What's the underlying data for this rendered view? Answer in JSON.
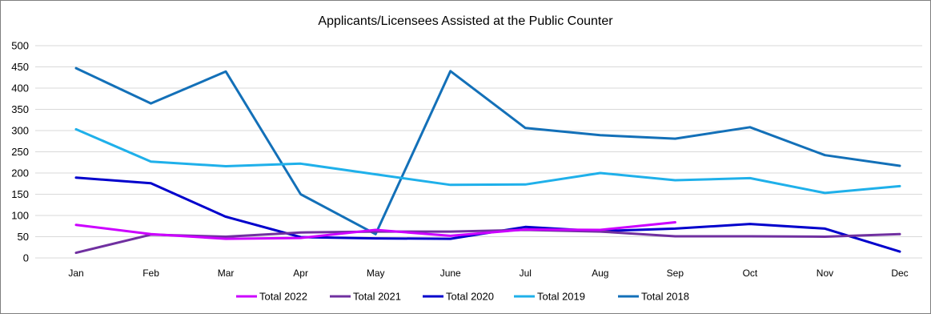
{
  "chart_data": {
    "type": "line",
    "title": "Applicants/Licensees Assisted at the Public Counter",
    "categories": [
      "Jan",
      "Feb",
      "Mar",
      "Apr",
      "May",
      "June",
      "Jul",
      "Aug",
      "Sep",
      "Oct",
      "Nov",
      "Dec"
    ],
    "ylim": [
      0,
      500
    ],
    "yticks": [
      0,
      50,
      100,
      150,
      200,
      250,
      300,
      350,
      400,
      450,
      500
    ],
    "grid": true,
    "legend_position": "bottom",
    "series": [
      {
        "name": "Total 2022",
        "color": "#cc00ff",
        "values": [
          78,
          56,
          45,
          47,
          66,
          52,
          67,
          66,
          84,
          null,
          null,
          null
        ]
      },
      {
        "name": "Total 2021",
        "color": "#7030a0",
        "values": [
          12,
          55,
          50,
          60,
          62,
          62,
          66,
          62,
          51,
          51,
          50,
          56
        ]
      },
      {
        "name": "Total 2020",
        "color": "#0000cc",
        "values": [
          189,
          176,
          97,
          49,
          46,
          45,
          73,
          63,
          69,
          80,
          69,
          15
        ]
      },
      {
        "name": "Total 2019",
        "color": "#1fb0ea",
        "values": [
          303,
          227,
          216,
          222,
          197,
          172,
          173,
          200,
          183,
          188,
          153,
          169
        ]
      },
      {
        "name": "Total 2018",
        "color": "#1370b8",
        "values": [
          447,
          364,
          439,
          150,
          56,
          440,
          306,
          289,
          281,
          308,
          242,
          217
        ]
      }
    ]
  }
}
